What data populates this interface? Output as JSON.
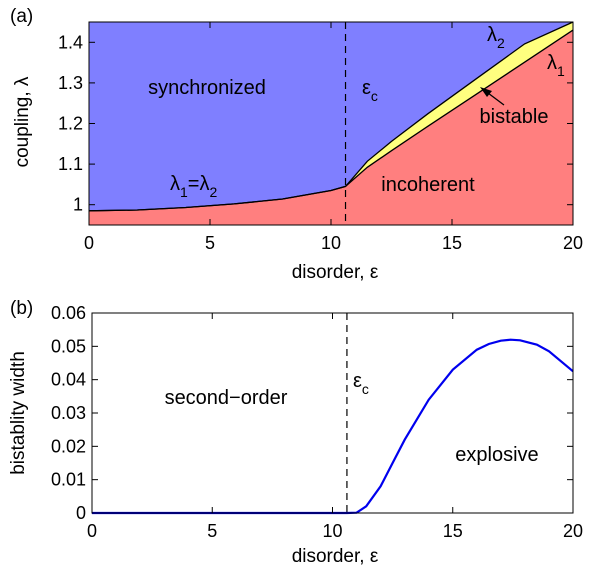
{
  "panels": [
    {
      "label": "(a)"
    },
    {
      "label": "(b)"
    }
  ],
  "chart_data": [
    {
      "type": "area",
      "xlabel": "disorder, ε",
      "ylabel": "coupling, λ",
      "xlim": [
        0,
        20
      ],
      "ylim": [
        0.95,
        1.45
      ],
      "xticks": [
        "0",
        "5",
        "10",
        "15",
        "20"
      ],
      "yticks": [
        "1",
        "1.1",
        "1.2",
        "1.3",
        "1.4"
      ],
      "critical_x": 10.6,
      "critical_label": {
        "main": "ε",
        "sub": "c"
      },
      "x": [
        0,
        2,
        4,
        6,
        8,
        10,
        10.6,
        11.5,
        12.5,
        14,
        16,
        18,
        20
      ],
      "series": [
        {
          "name": "λ1",
          "values": [
            0.985,
            0.987,
            0.993,
            1.002,
            1.014,
            1.035,
            1.045,
            1.092,
            1.133,
            1.193,
            1.272,
            1.351,
            1.43
          ]
        },
        {
          "name": "λ2",
          "values": [
            0.985,
            0.987,
            0.993,
            1.002,
            1.014,
            1.035,
            1.045,
            1.107,
            1.156,
            1.224,
            1.31,
            1.396,
            1.48
          ]
        }
      ],
      "regions": [
        {
          "name": "synchronized",
          "color": "#7f7fff"
        },
        {
          "name": "incoherent",
          "color": "#ff7f7f"
        },
        {
          "name": "bistable",
          "color": "#ffff7f"
        }
      ],
      "annotations": {
        "equal_label": {
          "l1": "λ",
          "s1": "1",
          "eq": "=",
          "l2": "λ",
          "s2": "2"
        },
        "lambda2_label": {
          "main": "λ",
          "sub": "2"
        },
        "lambda1_label": {
          "main": "λ",
          "sub": "1"
        },
        "bistable_label": "bistable"
      },
      "grid": false
    },
    {
      "type": "line",
      "xlabel": "disorder, ε",
      "ylabel": "bistablity width",
      "xlim": [
        0,
        20
      ],
      "ylim": [
        0,
        0.06
      ],
      "xticks": [
        "0",
        "5",
        "10",
        "15",
        "20"
      ],
      "yticks": [
        "0",
        "0.01",
        "0.02",
        "0.03",
        "0.04",
        "0.05",
        "0.06"
      ],
      "critical_x": 10.6,
      "critical_label": {
        "main": "ε",
        "sub": "c"
      },
      "x": [
        0,
        10.6,
        11.0,
        11.4,
        12.0,
        12.5,
        13.0,
        14.0,
        15.0,
        16.0,
        16.5,
        17.0,
        17.4,
        17.8,
        18.5,
        19.0,
        20.0
      ],
      "series": [
        {
          "name": "",
          "color": "#0000ee",
          "values": [
            0,
            0,
            0.0001,
            0.002,
            0.008,
            0.015,
            0.022,
            0.034,
            0.043,
            0.049,
            0.0507,
            0.0517,
            0.052,
            0.0518,
            0.0505,
            0.0485,
            0.0425
          ]
        }
      ],
      "region_labels": [
        "second−order",
        "explosive"
      ],
      "grid": false
    }
  ]
}
